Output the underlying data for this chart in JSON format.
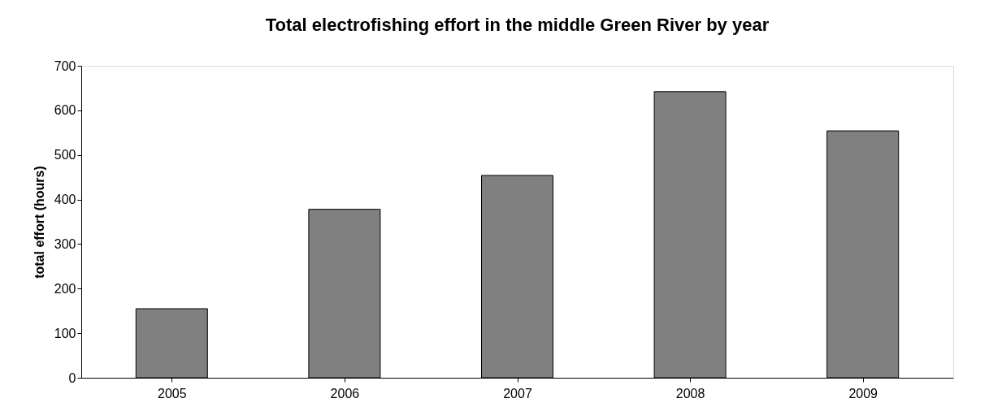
{
  "chart_data": {
    "type": "bar",
    "title": "Total electrofishing effort in the middle Green River by year",
    "ylabel": "total effort (hours)",
    "categories": [
      "2005",
      "2006",
      "2007",
      "2008",
      "2009"
    ],
    "values": [
      155,
      378,
      454,
      642,
      554
    ],
    "color": "#808080",
    "ylim": [
      0,
      700
    ],
    "yticks": [
      0,
      100,
      200,
      300,
      400,
      500,
      600,
      700
    ],
    "grid": false
  }
}
